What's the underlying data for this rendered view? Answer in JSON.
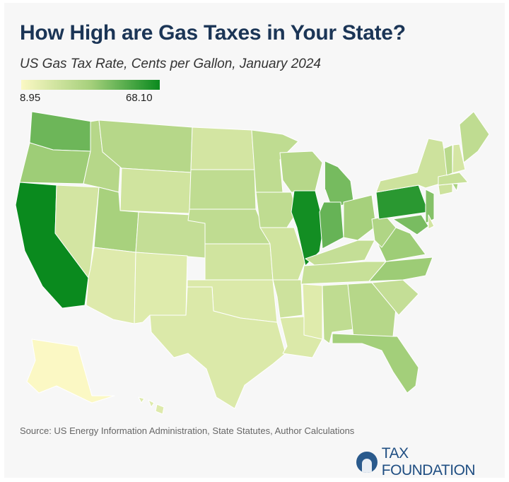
{
  "header": {
    "title": "How High are Gas Taxes in Your State?",
    "subtitle": "US Gas Tax Rate, Cents per Gallon, January 2024"
  },
  "legend": {
    "min_label": "8.95",
    "max_label": "68.10",
    "min": 8.95,
    "max": 68.1,
    "colors": [
      "#fbf8c4",
      "#a6d07c",
      "#0a8a1e"
    ]
  },
  "map": {
    "type": "choropleth",
    "state_border_color": "#ffffff",
    "states": [
      {
        "abbr": "WA",
        "value": 49.4
      },
      {
        "abbr": "OR",
        "value": 40
      },
      {
        "abbr": "CA",
        "value": 68.1
      },
      {
        "abbr": "NV",
        "value": 23
      },
      {
        "abbr": "ID",
        "value": 33
      },
      {
        "abbr": "MT",
        "value": 33
      },
      {
        "abbr": "WY",
        "value": 24
      },
      {
        "abbr": "UT",
        "value": 38
      },
      {
        "abbr": "AZ",
        "value": 19
      },
      {
        "abbr": "CO",
        "value": 28
      },
      {
        "abbr": "NM",
        "value": 18.9
      },
      {
        "abbr": "ND",
        "value": 23
      },
      {
        "abbr": "SD",
        "value": 30
      },
      {
        "abbr": "NE",
        "value": 30
      },
      {
        "abbr": "KS",
        "value": 24
      },
      {
        "abbr": "OK",
        "value": 20
      },
      {
        "abbr": "TX",
        "value": 20
      },
      {
        "abbr": "MN",
        "value": 30
      },
      {
        "abbr": "IA",
        "value": 30
      },
      {
        "abbr": "MO",
        "value": 24
      },
      {
        "abbr": "AR",
        "value": 25
      },
      {
        "abbr": "LA",
        "value": 20
      },
      {
        "abbr": "WI",
        "value": 33
      },
      {
        "abbr": "IL",
        "value": 66.4
      },
      {
        "abbr": "MI",
        "value": 47.6
      },
      {
        "abbr": "IN",
        "value": 50.6
      },
      {
        "abbr": "OH",
        "value": 38.5
      },
      {
        "abbr": "KY",
        "value": 28
      },
      {
        "abbr": "TN",
        "value": 27
      },
      {
        "abbr": "MS",
        "value": 18.8
      },
      {
        "abbr": "AL",
        "value": 30
      },
      {
        "abbr": "GA",
        "value": 33
      },
      {
        "abbr": "FL",
        "value": 39
      },
      {
        "abbr": "SC",
        "value": 28
      },
      {
        "abbr": "NC",
        "value": 40.3
      },
      {
        "abbr": "VA",
        "value": 40
      },
      {
        "abbr": "WV",
        "value": 35
      },
      {
        "abbr": "PA",
        "value": 62.1
      },
      {
        "abbr": "NY",
        "value": 25
      },
      {
        "abbr": "NJ",
        "value": 44.9
      },
      {
        "abbr": "MD",
        "value": 47
      },
      {
        "abbr": "DE",
        "value": 23
      },
      {
        "abbr": "CT",
        "value": 25
      },
      {
        "abbr": "RI",
        "value": 37
      },
      {
        "abbr": "MA",
        "value": 27
      },
      {
        "abbr": "VT",
        "value": 32
      },
      {
        "abbr": "NH",
        "value": 22
      },
      {
        "abbr": "ME",
        "value": 30
      },
      {
        "abbr": "AK",
        "value": 8.95
      },
      {
        "abbr": "HI",
        "value": 19
      }
    ]
  },
  "footer": {
    "source": "Source: US Energy Information Administration, State Statutes, Author Calculations",
    "logo_text": "TAX FOUNDATION"
  }
}
